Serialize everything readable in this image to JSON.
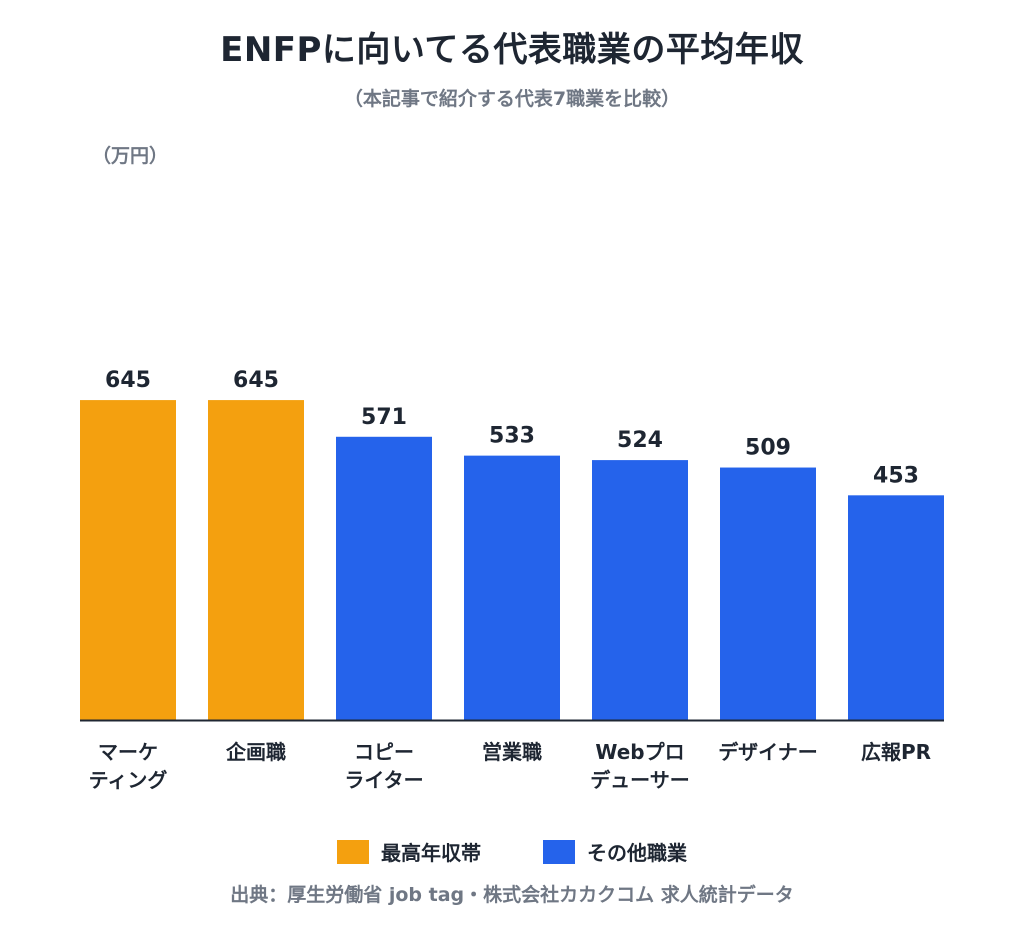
{
  "header": {
    "title": "ENFPに向いてる代表職業の平均年収",
    "subtitle": "（本記事で紹介する代表7職業を比較）",
    "unit": "（万円）"
  },
  "colors": {
    "highlight": "#f4a00f",
    "other": "#2563eb",
    "axis": "#1f2733",
    "value_text": "#1e2632"
  },
  "chart_data": {
    "type": "bar",
    "categories": [
      [
        "マーケ",
        "ティング"
      ],
      [
        "企画職"
      ],
      [
        "コピー",
        "ライター"
      ],
      [
        "営業職"
      ],
      [
        "Webプロ",
        "デューサー"
      ],
      [
        "デザイナー"
      ],
      [
        "広報PR"
      ]
    ],
    "values": [
      645,
      645,
      571,
      533,
      524,
      509,
      453
    ],
    "groups": [
      "highlight",
      "highlight",
      "other",
      "other",
      "other",
      "other",
      "other"
    ],
    "ylim": [
      0,
      1000
    ],
    "grid": false,
    "legend_placement": "bottom-center"
  },
  "legend": {
    "highlight_label": "最高年収帯",
    "other_label": "その他職業"
  },
  "source": "出典：厚生労働省 job tag・株式会社カカクコム 求人統計データ"
}
